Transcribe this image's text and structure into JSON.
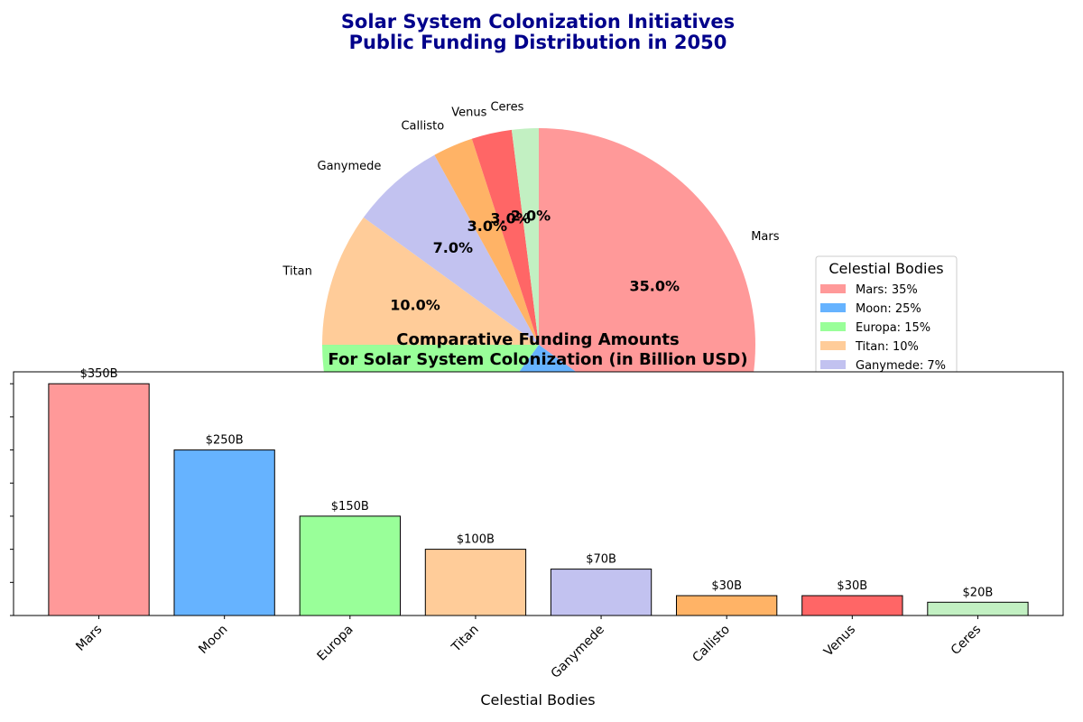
{
  "figure": {
    "title_line1": "Solar System Colonization Initiatives",
    "title_line2": "Public Funding Distribution in 2050",
    "title_color": "#00008b"
  },
  "legend": {
    "title": "Celestial Bodies",
    "visible_entries": [
      "Mars: 35%",
      "Moon: 25%",
      "Europa: 15%",
      "Titan: 10%",
      "Ganymede: 7%"
    ],
    "placement": "right"
  },
  "chart_data": [
    {
      "type": "pie",
      "categories": [
        "Mars",
        "Moon",
        "Europa",
        "Titan",
        "Ganymede",
        "Callisto",
        "Venus",
        "Ceres"
      ],
      "values": [
        35,
        25,
        15,
        10,
        7,
        3,
        3,
        2
      ],
      "visible_pct_labels": [
        "35.0%",
        "10.0%",
        "7.0%",
        "3.0%",
        "3.0%",
        "2.0%"
      ],
      "visible_name_labels": [
        "Mars",
        "Titan",
        "Ganymede",
        "Callisto",
        "Venus",
        "Ceres"
      ],
      "colors": [
        "#ff9999",
        "#66b3ff",
        "#99ff99",
        "#ffcc99",
        "#c2c2f0",
        "#ffb366",
        "#ff6666",
        "#c2f0c2"
      ],
      "start_angle_deg": 90,
      "direction": "clockwise"
    },
    {
      "type": "bar",
      "title_line1": "Comparative Funding Amounts",
      "title_line2": "For Solar System Colonization (in Billion USD)",
      "xlabel": "Celestial Bodies",
      "categories": [
        "Mars",
        "Moon",
        "Europa",
        "Titan",
        "Ganymede",
        "Callisto",
        "Venus",
        "Ceres"
      ],
      "values": [
        350,
        250,
        150,
        100,
        70,
        30,
        30,
        20
      ],
      "bar_labels": [
        "$350B",
        "$250B",
        "$150B",
        "$100B",
        "$70B",
        "$30B",
        "$30B",
        "$20B"
      ],
      "colors": [
        "#ff9999",
        "#66b3ff",
        "#99ff99",
        "#ffcc99",
        "#c2c2f0",
        "#ffb366",
        "#ff6666",
        "#c2f0c2"
      ],
      "ylim": [
        0,
        368
      ],
      "yticks": [
        0,
        50,
        100,
        150,
        200,
        250,
        300,
        350
      ],
      "grid": false
    }
  ]
}
